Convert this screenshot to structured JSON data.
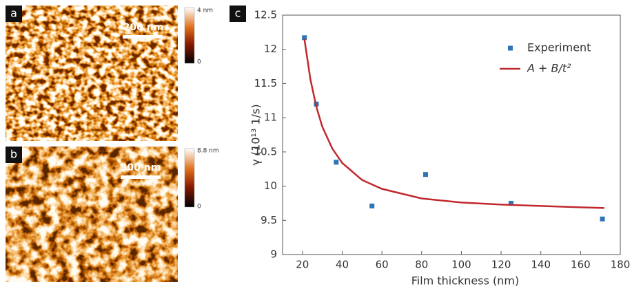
{
  "panels": [
    {
      "letter": "a",
      "scale_bar": "200 nm",
      "colorbar_max": "4 nm",
      "colorbar_min": "0"
    },
    {
      "letter": "b",
      "scale_bar": "300 nm",
      "colorbar_max": "8.8 nm",
      "colorbar_min": "0"
    }
  ],
  "chart_data": {
    "type": "scatter",
    "panel_letter": "c",
    "x_label": "Film thickness (nm)",
    "y_label": "γ (10¹³ 1/s)",
    "xlim": [
      10,
      180
    ],
    "xticks": [
      20,
      40,
      60,
      80,
      100,
      120,
      140,
      160,
      180
    ],
    "ylim": [
      9,
      12.5
    ],
    "yticks": [
      9,
      9.5,
      10,
      10.5,
      11,
      11.5,
      12,
      12.5
    ],
    "legend": "upper right",
    "series": [
      {
        "name": "Experiment",
        "kind": "scatter",
        "color": "#2e75b6",
        "x": [
          21,
          27,
          37,
          55,
          82,
          125,
          171
        ],
        "values": [
          12.17,
          11.2,
          10.35,
          9.71,
          10.17,
          9.75,
          9.52
        ]
      },
      {
        "name": "A + B/t²",
        "kind": "line",
        "color": "#c0282d",
        "x": [
          21,
          24,
          27,
          30,
          35,
          40,
          50,
          60,
          80,
          100,
          120,
          140,
          160,
          172
        ],
        "values": [
          12.15,
          11.56,
          11.16,
          10.87,
          10.55,
          10.34,
          10.09,
          9.96,
          9.82,
          9.76,
          9.73,
          9.71,
          9.69,
          9.68
        ]
      }
    ]
  }
}
